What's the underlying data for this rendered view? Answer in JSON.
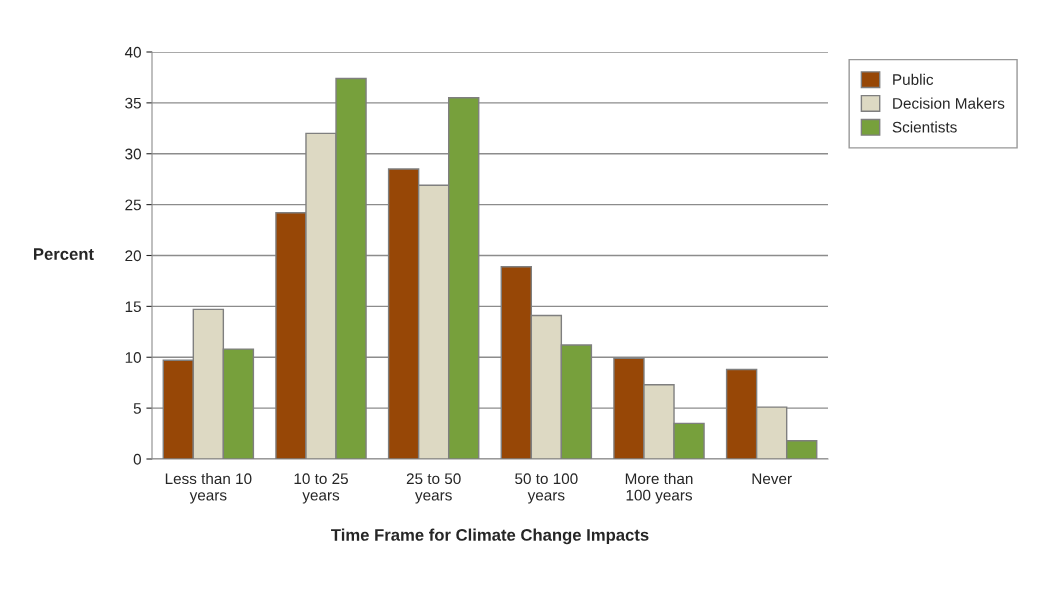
{
  "chart_data": {
    "type": "bar",
    "xlabel": "Time Frame for Climate Change Impacts",
    "ylabel": "Percent",
    "categories": [
      "Less than 10\nyears",
      "10 to 25\nyears",
      "25 to 50\nyears",
      "50 to 100\nyears",
      "More than\n100 years",
      "Never"
    ],
    "series": [
      {
        "name": "Public",
        "color": "#974706",
        "values": [
          9.7,
          24.2,
          28.5,
          18.9,
          9.9,
          8.8
        ]
      },
      {
        "name": "Decision Makers",
        "color": "#ddd9c3",
        "values": [
          14.7,
          32.0,
          26.9,
          14.1,
          7.3,
          5.1
        ]
      },
      {
        "name": "Scientists",
        "color": "#77a03c",
        "values": [
          10.8,
          37.4,
          35.5,
          11.2,
          3.5,
          1.8
        ]
      }
    ],
    "ylim": [
      0,
      40
    ],
    "yticks": [
      0,
      5,
      10,
      15,
      20,
      25,
      30,
      35,
      40
    ],
    "grid": "y",
    "legend": "top right"
  }
}
